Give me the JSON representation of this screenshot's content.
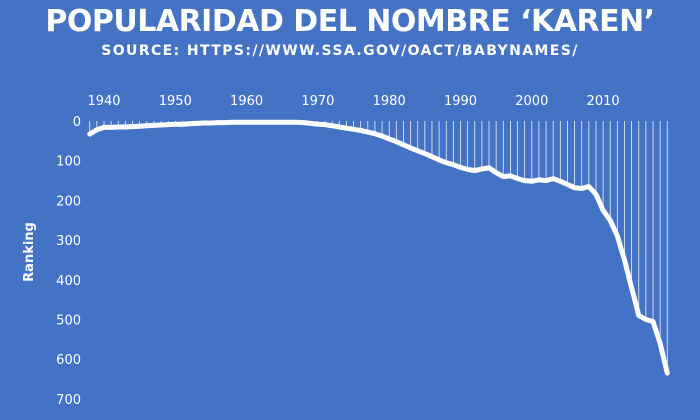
{
  "chart_data": {
    "type": "line",
    "title": "POPULARIDAD DEL NOMBRE ‘KAREN’",
    "subtitle": "SOURCE: HTTPS://WWW.SSA.GOV/OACT/BABYNAMES/",
    "xlabel": "",
    "ylabel": "Ranking",
    "x_ticks": [
      1940,
      1950,
      1960,
      1970,
      1980,
      1990,
      2000,
      2010
    ],
    "y_ticks": [
      0,
      100,
      200,
      300,
      400,
      500,
      600,
      700
    ],
    "xlim": [
      1940,
      2022
    ],
    "ylim": [
      0,
      700
    ],
    "y_inverted": true,
    "x_axis_position": "top",
    "drop_lines": true,
    "line_color": "#ffffff",
    "background_color": "#4472c4",
    "grid": false,
    "series": [
      {
        "x": [
          1938,
          1939,
          1940,
          1941,
          1942,
          1943,
          1944,
          1945,
          1946,
          1947,
          1948,
          1949,
          1950,
          1951,
          1952,
          1953,
          1954,
          1955,
          1956,
          1957,
          1958,
          1959,
          1960,
          1961,
          1962,
          1963,
          1964,
          1965,
          1966,
          1967,
          1968,
          1969,
          1970,
          1971,
          1972,
          1973,
          1974,
          1975,
          1976,
          1977,
          1978,
          1979,
          1980,
          1981,
          1982,
          1983,
          1984,
          1985,
          1986,
          1987,
          1988,
          1989,
          1990,
          1991,
          1992,
          1993,
          1994,
          1995,
          1996,
          1997,
          1998,
          1999,
          2000,
          2001,
          2002,
          2003,
          2004,
          2005,
          2006,
          2007,
          2008,
          2009,
          2010,
          2011,
          2012,
          2013,
          2014,
          2015,
          2016,
          2017,
          2018,
          2019
        ],
        "values": [
          33,
          22,
          16,
          16,
          15,
          15,
          14,
          13,
          12,
          11,
          10,
          9,
          8,
          8,
          7,
          6,
          5,
          5,
          4,
          4,
          3,
          3,
          3,
          3,
          3,
          3,
          3,
          3,
          3,
          3,
          4,
          6,
          8,
          9,
          12,
          15,
          18,
          21,
          24,
          28,
          32,
          38,
          45,
          52,
          60,
          68,
          75,
          82,
          90,
          98,
          105,
          110,
          117,
          122,
          125,
          121,
          118,
          130,
          140,
          138,
          145,
          150,
          152,
          148,
          150,
          145,
          152,
          160,
          168,
          170,
          165,
          185,
          225,
          250,
          290,
          350,
          420,
          490,
          500,
          505,
          560,
          635
        ]
      }
    ]
  }
}
